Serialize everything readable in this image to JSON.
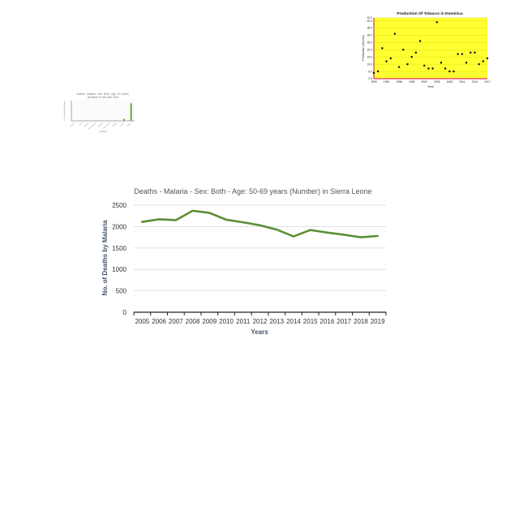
{
  "chart_data": [
    {
      "type": "scatter",
      "title": "Production Of Tobacco in Dominica",
      "xlabel": "Year",
      "ylabel": "Production (tonnes)",
      "xlim": [
        1990,
        2017
      ],
      "ylim": [
        0,
        42
      ],
      "x_tick_labels": [
        "1990",
        "1993",
        "1996",
        "1999",
        "2002",
        "2005",
        "2008",
        "2011",
        "2014",
        "2017"
      ],
      "y_tick_labels": [
        "0.0",
        "5.0",
        "10.0",
        "15.0",
        "20.0",
        "25.0",
        "30.0",
        "35.0",
        "40.0",
        "42.0"
      ],
      "grid": true,
      "background_color": "#ffff33",
      "point_color": "#000000",
      "axis_color": "#e0004d",
      "x": [
        1990,
        1991,
        1992,
        1993,
        1994,
        1995,
        1996,
        1997,
        1998,
        1999,
        2000,
        2001,
        2002,
        2003,
        2004,
        2005,
        2006,
        2007,
        2008,
        2009,
        2010,
        2011,
        2012,
        2013,
        2014,
        2015,
        2016,
        2017
      ],
      "values": [
        4,
        5,
        21,
        12,
        14,
        31,
        8,
        20,
        10,
        15,
        18,
        26,
        9,
        7,
        7,
        39,
        11,
        7,
        5,
        5,
        17,
        17,
        11,
        18,
        18,
        10,
        12,
        14
      ]
    },
    {
      "type": "bar",
      "title": "Deaths - Malaria - Sex: Both - Age: 70+ years (Number) for the year 2019",
      "xlabel": "Country",
      "ylabel": "No. of Deaths by Malaria",
      "categories": [
        "Comoros",
        "Chad",
        "Burundi",
        "Guinea-Bissau",
        "Rwanda",
        "Sierra Leone",
        "Uganda",
        "Zambia",
        "Nigeria"
      ],
      "values": [
        0,
        0,
        0,
        0,
        0,
        0,
        0,
        1000,
        8700
      ],
      "ylim": [
        0,
        10000
      ],
      "bar_color": "#6aaa2a",
      "grid": true
    },
    {
      "type": "line",
      "title": "Deaths - Malaria - Sex: Both - Age: 50-69 years (Number) in Sierra Leone",
      "xlabel": "Years",
      "ylabel": "No. of Deaths by Malaria",
      "categories": [
        "2005",
        "2006",
        "2007",
        "2008",
        "2009",
        "2010",
        "2011",
        "2012",
        "2013",
        "2014",
        "2015",
        "2016",
        "2017",
        "2018",
        "2019"
      ],
      "values": [
        2110,
        2170,
        2150,
        2370,
        2320,
        2160,
        2100,
        2030,
        1930,
        1770,
        1920,
        1860,
        1810,
        1750,
        1780
      ],
      "ylim": [
        0,
        2500
      ],
      "y_tick_labels": [
        "0",
        "500",
        "1000",
        "1500",
        "2000",
        "2500"
      ],
      "grid": true,
      "line_color": "#5a8f35"
    }
  ]
}
